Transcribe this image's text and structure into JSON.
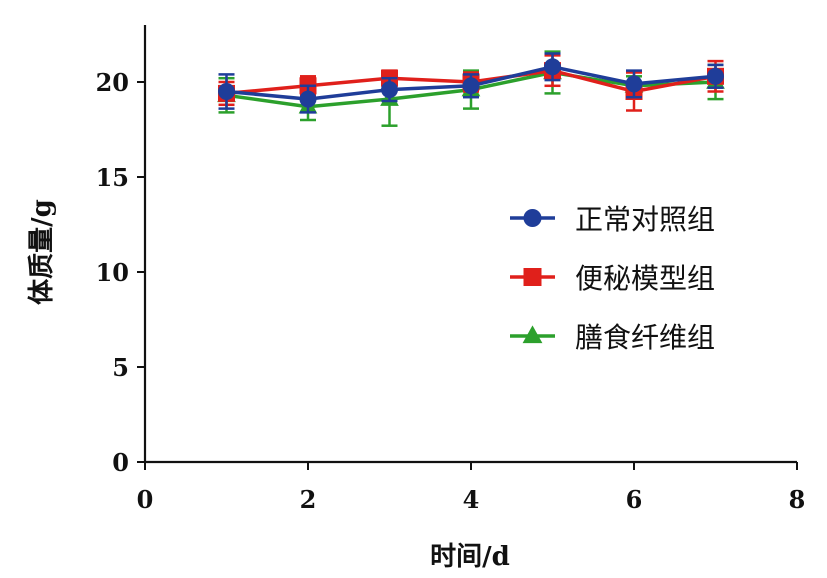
{
  "chart_data": {
    "type": "line",
    "title": "",
    "xlabel": "时间/d",
    "ylabel": "体质量/g",
    "xlim": [
      0,
      8
    ],
    "ylim": [
      0,
      23
    ],
    "xticks": [
      0,
      2,
      4,
      6,
      8
    ],
    "yticks": [
      0,
      5,
      10,
      15,
      20
    ],
    "xtick_labels": [
      "0",
      "2",
      "4",
      "6",
      "8"
    ],
    "ytick_labels": [
      "0",
      "5",
      "10",
      "15",
      "20"
    ],
    "grid": false,
    "legend_position": "right-middle",
    "x": [
      1,
      2,
      3,
      4,
      5,
      6,
      7
    ],
    "series": [
      {
        "name": "正常对照组",
        "color": "#1f3d99",
        "marker": "circle",
        "values": [
          19.5,
          19.1,
          19.6,
          19.8,
          20.8,
          19.9,
          20.3
        ],
        "errors": [
          0.9,
          0.7,
          0.6,
          0.6,
          0.7,
          0.7,
          0.6
        ]
      },
      {
        "name": "便秘模型组",
        "color": "#e0201b",
        "marker": "square",
        "values": [
          19.4,
          19.8,
          20.2,
          20.0,
          20.6,
          19.5,
          20.3
        ],
        "errors": [
          0.6,
          0.5,
          0.4,
          0.5,
          0.8,
          1.0,
          0.8
        ]
      },
      {
        "name": "膳食纤维组",
        "color": "#2ca02c",
        "marker": "triangle",
        "values": [
          19.3,
          18.7,
          19.1,
          19.6,
          20.5,
          19.8,
          20.0
        ],
        "errors": [
          0.9,
          0.7,
          1.4,
          1.0,
          1.1,
          0.5,
          0.9
        ]
      }
    ]
  }
}
